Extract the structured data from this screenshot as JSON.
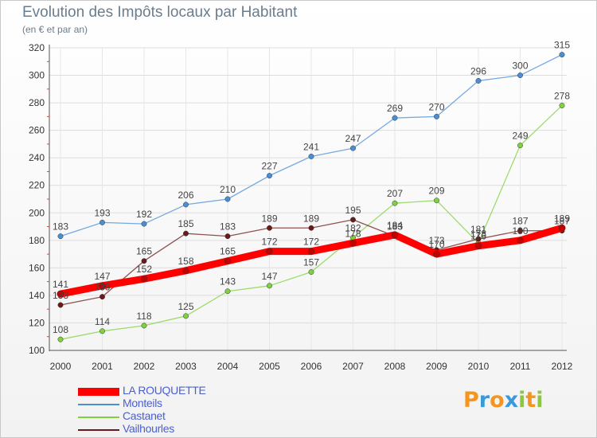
{
  "chart_data": {
    "type": "line",
    "title": "Evolution des Impôts locaux par Habitant",
    "subtitle": "(en € et par an)",
    "x": [
      "2000",
      "2001",
      "2002",
      "2003",
      "2004",
      "2005",
      "2006",
      "2007",
      "2008",
      "2009",
      "2010",
      "2011",
      "2012"
    ],
    "ylim": [
      100,
      320
    ],
    "yticks": [
      100,
      120,
      140,
      160,
      180,
      200,
      220,
      240,
      260,
      280,
      300,
      320
    ],
    "grid": true,
    "legend_position": "bottom-left",
    "series": [
      {
        "name": "LA ROUQUETTE",
        "color": "#ff0000",
        "values": [
          141,
          147,
          152,
          158,
          165,
          172,
          172,
          178,
          184,
          170,
          176,
          180,
          189
        ]
      },
      {
        "name": "Monteils",
        "color": "#4a8fd4",
        "values": [
          183,
          193,
          192,
          206,
          210,
          227,
          241,
          247,
          269,
          270,
          296,
          300,
          315
        ]
      },
      {
        "name": "Castanet",
        "color": "#7fd13f",
        "values": [
          108,
          114,
          118,
          125,
          143,
          147,
          157,
          182,
          207,
          209,
          178,
          249,
          278
        ]
      },
      {
        "name": "Vailhourles",
        "color": "#6b1a1a",
        "values": [
          133,
          139,
          165,
          185,
          183,
          189,
          189,
          195,
          183,
          173,
          181,
          187,
          187
        ]
      }
    ]
  },
  "logo": {
    "letters": [
      "P",
      "r",
      "o",
      "x",
      "i",
      "t",
      "i"
    ],
    "colors": [
      "#f7941d",
      "#3a9ad9",
      "#f7941d",
      "#3a9ad9",
      "#8dc63f",
      "#f7941d",
      "#8dc63f"
    ]
  }
}
